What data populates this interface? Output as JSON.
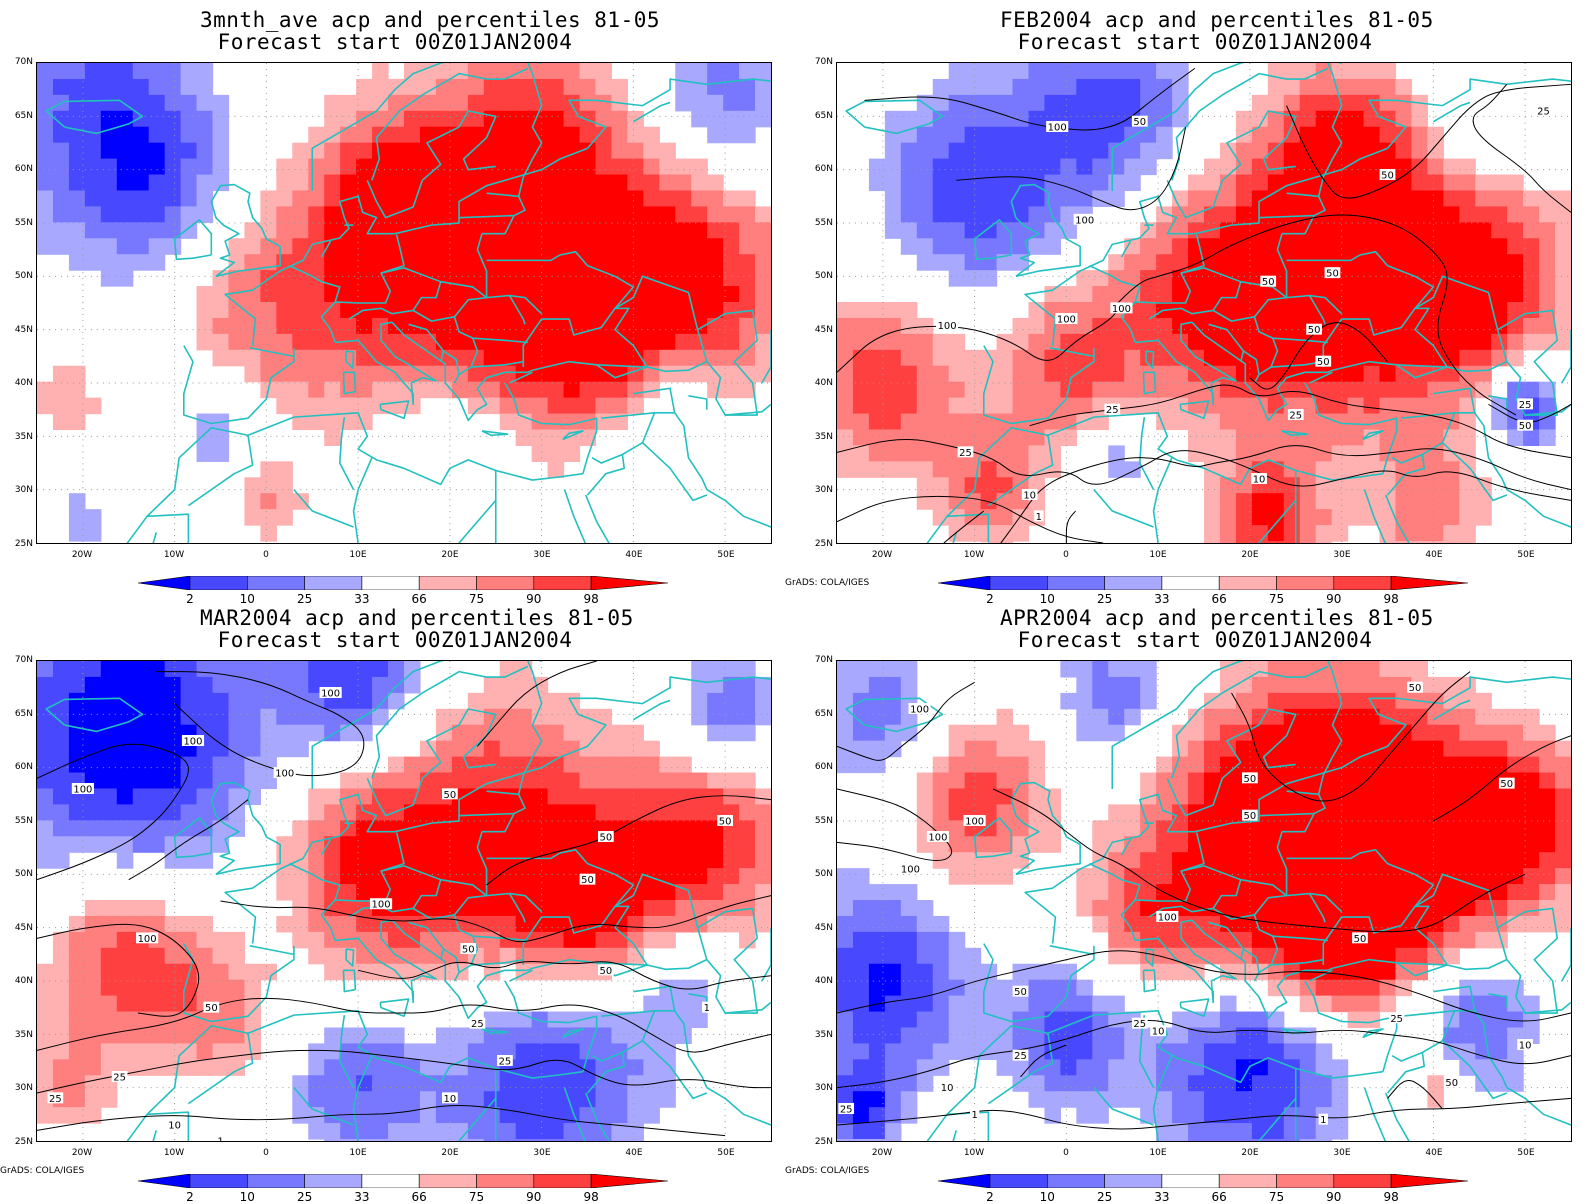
{
  "panels": [
    {
      "title_line1": "3mnth_ave acp and percentiles 81-05",
      "title_line2": "Forecast start 00Z01JAN2004",
      "has_contours": false,
      "contour_labels": [],
      "credit": ""
    },
    {
      "title_line1": "FEB2004 acp and percentiles 81-05",
      "title_line2": "Forecast start 00Z01JAN2004",
      "has_contours": true,
      "contour_labels": [
        "100",
        "100",
        "100",
        "100",
        "100",
        "50",
        "50",
        "50",
        "50",
        "50",
        "50",
        "25",
        "25",
        "25",
        "25",
        "10",
        "10",
        "1",
        "1",
        "25",
        "50"
      ],
      "credit": "GrADS: COLA/IGES"
    },
    {
      "title_line1": "MAR2004 acp and percentiles 81-05",
      "title_line2": "Forecast start 00Z01JAN2004",
      "has_contours": true,
      "contour_labels": [
        "100",
        "100",
        "100",
        "100",
        "100",
        "100",
        "50",
        "50",
        "50",
        "50",
        "50",
        "50",
        "25",
        "25",
        "25",
        "10",
        "10",
        "1",
        "1",
        "50",
        "25"
      ],
      "credit": "GrADS: COLA/IGES"
    },
    {
      "title_line1": "APR2004 acp and percentiles 81-05",
      "title_line2": "Forecast start 00Z01JAN2004",
      "has_contours": true,
      "contour_labels": [
        "100",
        "100",
        "100",
        "100",
        "100",
        "50",
        "50",
        "50",
        "50",
        "50",
        "50",
        "25",
        "25",
        "25",
        "10",
        "10",
        "10",
        "1",
        "1",
        "50",
        "25"
      ],
      "credit": "GrADS: COLA/IGES"
    }
  ],
  "axes": {
    "lat_labels": [
      "70N",
      "65N",
      "60N",
      "55N",
      "50N",
      "45N",
      "40N",
      "35N",
      "30N",
      "25N"
    ],
    "lon_labels": [
      "20W",
      "10W",
      "0",
      "10E",
      "20E",
      "30E",
      "40E",
      "50E"
    ],
    "lat_range": [
      25,
      70
    ],
    "lon_range": [
      -25,
      55
    ]
  },
  "colorbar": {
    "labels": [
      "2",
      "10",
      "25",
      "33",
      "66",
      "75",
      "90",
      "98"
    ],
    "colors": [
      "#0000ff",
      "#4848ff",
      "#7878ff",
      "#a8a8ff",
      "#ffffff",
      "#ffb0b0",
      "#ff7e7e",
      "#ff4040",
      "#ff0000"
    ]
  },
  "colors": {
    "coastline": "#22c0c0",
    "contour": "#000000",
    "grid": "#999999"
  }
}
